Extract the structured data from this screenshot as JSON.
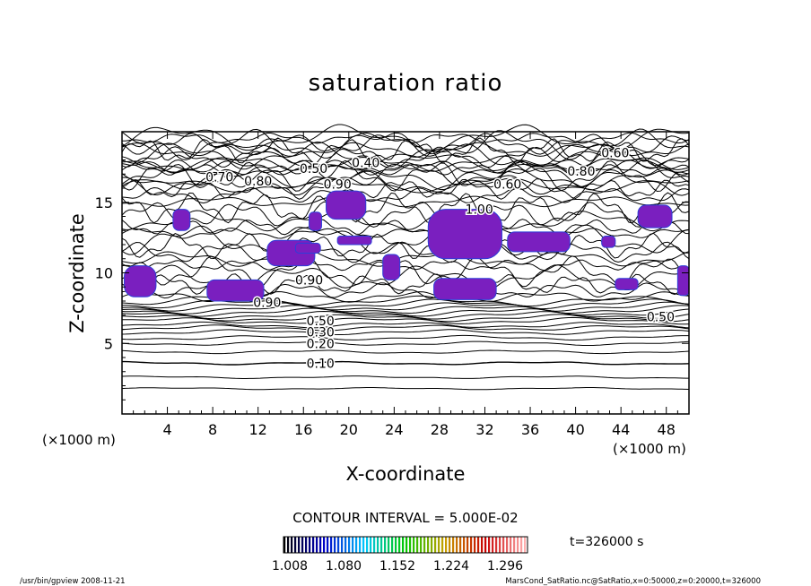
{
  "chart_data": {
    "type": "contour",
    "title": "saturation ratio",
    "xlabel": "X-coordinate",
    "ylabel": "Z-coordinate",
    "x_unit": "(×1000 m)",
    "z_unit": "(×1000 m)",
    "xlim": [
      0,
      50
    ],
    "ylim": [
      0,
      20
    ],
    "x_ticks": [
      4,
      8,
      12,
      16,
      20,
      24,
      28,
      32,
      36,
      40,
      44,
      48
    ],
    "y_ticks": [
      5,
      10,
      15
    ],
    "grid": false,
    "contour_interval_text": "CONTOUR INTERVAL = 5.000E-02",
    "contour_labels": [
      {
        "text": "0.10",
        "x": 17.5,
        "z": 3.6
      },
      {
        "text": "0.20",
        "x": 17.5,
        "z": 5.0
      },
      {
        "text": "0.30",
        "x": 17.5,
        "z": 5.8
      },
      {
        "text": "0.50",
        "x": 17.5,
        "z": 6.6
      },
      {
        "text": "0.90",
        "x": 12.8,
        "z": 7.9
      },
      {
        "text": "0.90",
        "x": 16.5,
        "z": 9.5
      },
      {
        "text": "0.50",
        "x": 47.5,
        "z": 6.9
      },
      {
        "text": "0.70",
        "x": 8.6,
        "z": 16.8
      },
      {
        "text": "0.80",
        "x": 12.0,
        "z": 16.5
      },
      {
        "text": "0.50",
        "x": 16.9,
        "z": 17.4
      },
      {
        "text": "0.40",
        "x": 21.5,
        "z": 17.8
      },
      {
        "text": "0.90",
        "x": 19.0,
        "z": 16.3
      },
      {
        "text": "0.60",
        "x": 34.0,
        "z": 16.3
      },
      {
        "text": "0.80",
        "x": 40.5,
        "z": 17.2
      },
      {
        "text": "0.60",
        "x": 43.5,
        "z": 18.5
      },
      {
        "text": "1.00",
        "x": 31.5,
        "z": 14.5
      }
    ],
    "shaded_regions_above_1": [
      {
        "x": [
          0.2,
          3.0
        ],
        "z": [
          8.3,
          10.5
        ]
      },
      {
        "x": [
          7.5,
          12.5
        ],
        "z": [
          8.0,
          9.5
        ]
      },
      {
        "x": [
          12.8,
          17.0
        ],
        "z": [
          10.5,
          12.3
        ]
      },
      {
        "x": [
          15.3,
          17.5
        ],
        "z": [
          11.4,
          12.1
        ]
      },
      {
        "x": [
          16.5,
          17.6
        ],
        "z": [
          13.0,
          14.3
        ]
      },
      {
        "x": [
          18.0,
          21.5
        ],
        "z": [
          13.8,
          15.8
        ]
      },
      {
        "x": [
          4.5,
          6.0
        ],
        "z": [
          13.0,
          14.5
        ]
      },
      {
        "x": [
          19.0,
          22.0
        ],
        "z": [
          12.0,
          12.6
        ]
      },
      {
        "x": [
          23.0,
          24.5
        ],
        "z": [
          9.5,
          11.3
        ]
      },
      {
        "x": [
          27.0,
          33.5
        ],
        "z": [
          11.0,
          14.5
        ]
      },
      {
        "x": [
          34.0,
          39.5
        ],
        "z": [
          11.5,
          12.9
        ]
      },
      {
        "x": [
          27.5,
          33.0
        ],
        "z": [
          8.1,
          9.6
        ]
      },
      {
        "x": [
          42.3,
          43.5
        ],
        "z": [
          11.8,
          12.6
        ]
      },
      {
        "x": [
          45.5,
          48.5
        ],
        "z": [
          13.2,
          14.8
        ]
      },
      {
        "x": [
          43.5,
          45.5
        ],
        "z": [
          8.8,
          9.6
        ]
      },
      {
        "x": [
          49.0,
          50.0
        ],
        "z": [
          8.4,
          10.5
        ]
      }
    ],
    "colorbar": {
      "ticks": [
        "1.008",
        "1.080",
        "1.152",
        "1.224",
        "1.296"
      ],
      "colors": [
        "#000000",
        "#0000c8",
        "#00c8ff",
        "#00c800",
        "#c8a000",
        "#c80000",
        "#ffb0b0"
      ]
    },
    "time_label": "t=326000 s"
  },
  "footer": {
    "left": "/usr/bin/gpview   2008-11-21",
    "right": "MarsCond_SatRatio.nc@SatRatio,x=0:50000,z=0:20000,t=326000"
  },
  "colors": {
    "fill": "#7a1fbf",
    "fill_edge": "#2c3fd8",
    "line": "#000000"
  }
}
